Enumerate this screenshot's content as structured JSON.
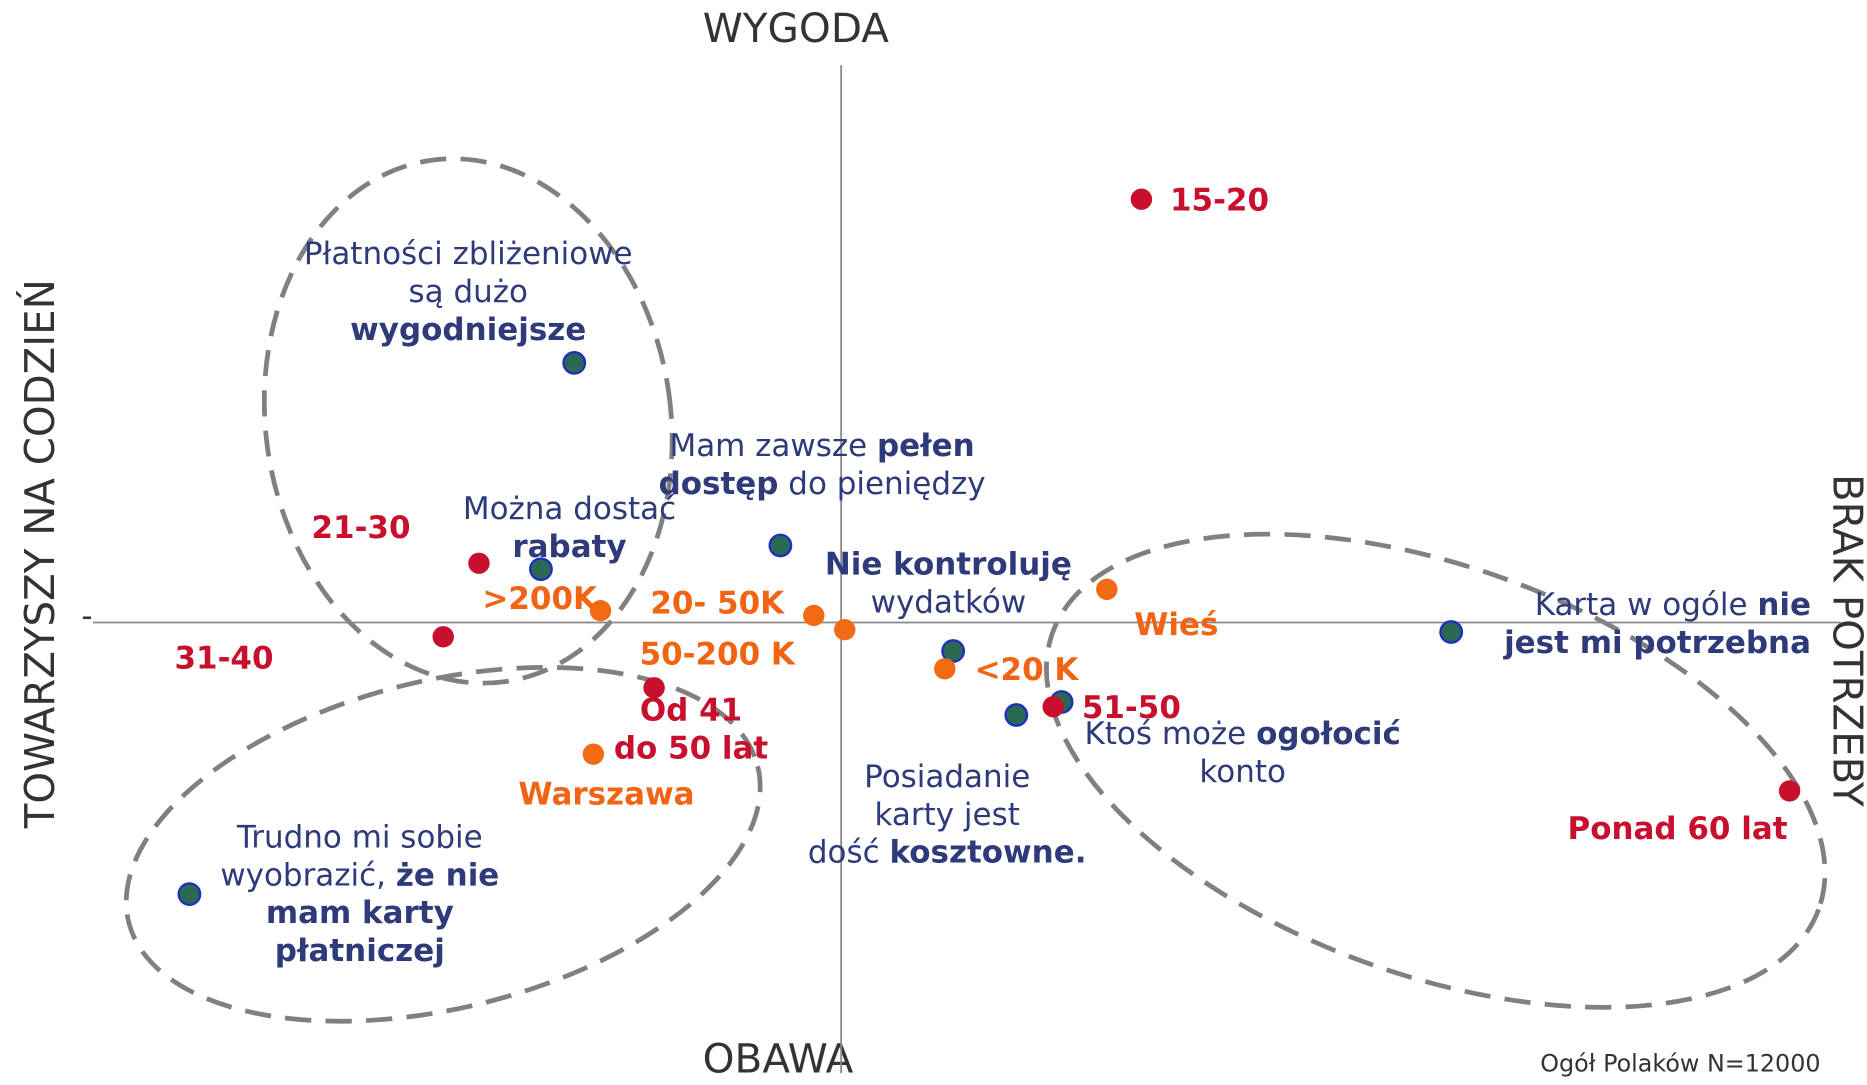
{
  "chart_data": {
    "type": "scatter",
    "x_axis_labels": [
      "TOWARZYSZY NA CODZIEŃ",
      "BRAK POTRZEBY"
    ],
    "y_axis_labels": [
      "WYGODA",
      "OBAWA"
    ],
    "y_tick_mark": "-",
    "note": "Ogół Polaków N=12000",
    "xlim": [
      -6.28,
      8.39
    ],
    "ylim": [
      -3.75,
      4.7
    ],
    "series": [
      {
        "color": "#2a6a52",
        "edge": "#1f2fbf",
        "text_color": "#2e3a7a",
        "bold": false,
        "x": [
          -2.24,
          -2.52,
          -0.51,
          0.94,
          1.85,
          1.47,
          5.12,
          -5.47
        ],
        "y": [
          2.19,
          0.45,
          0.65,
          -0.24,
          -0.67,
          -0.78,
          -0.08,
          -2.29
        ],
        "labels": [
          [
            [
              "Płatności zbliżeniowe"
            ],
            [
              "są dużo"
            ],
            [
              {
                "b": "wygodniejsze"
              }
            ]
          ],
          [
            [
              "Można dostać"
            ],
            [
              {
                "b": "rabaty"
              }
            ]
          ],
          [
            [
              "Mam zawsze ",
              {
                "b": "pełen"
              }
            ],
            [
              {
                "b": "dostęp"
              },
              " do pieniędzy"
            ]
          ],
          [
            [
              {
                "b": "Nie kontroluję"
              }
            ],
            [
              "wydatków"
            ]
          ],
          [
            [
              "Ktoś może ",
              {
                "b": "ogołocić"
              }
            ],
            [
              "konto"
            ]
          ],
          [
            [
              "Posiadanie"
            ],
            [
              "karty jest"
            ],
            [
              "dość ",
              {
                "b": "kosztowne."
              }
            ]
          ],
          [
            [
              "Karta w ogóle ",
              {
                "b": "nie"
              }
            ],
            [
              {
                "b": "jest mi potrzebna"
              }
            ]
          ],
          [
            [
              "Trudno mi sobie"
            ],
            [
              "wyobrazić, ",
              {
                "b": "że nie"
              }
            ],
            [
              {
                "b": "mam karty"
              }
            ],
            [
              {
                "b": "płatniczej"
              }
            ]
          ]
        ]
      },
      {
        "color": "#c8102e",
        "text_color": "#c8102e",
        "bold": true,
        "x": [
          2.52,
          -3.04,
          -3.34,
          -1.57,
          1.78,
          7.96
        ],
        "y": [
          3.57,
          0.5,
          -0.12,
          -0.55,
          -0.71,
          -1.42
        ],
        "labels": [
          [
            [
              "15-20"
            ]
          ],
          [
            [
              "21-30"
            ]
          ],
          [
            [
              "31-40"
            ]
          ],
          [
            [
              "Od 41"
            ],
            [
              "do 50 lat"
            ]
          ],
          [
            [
              "51-50"
            ]
          ],
          [
            [
              "Ponad 60 lat"
            ]
          ]
        ]
      },
      {
        "color": "#f26b14",
        "text_color": "#f06414",
        "bold": true,
        "x": [
          -2.02,
          -0.23,
          0.03,
          0.87,
          2.23,
          -2.08
        ],
        "y": [
          0.1,
          0.06,
          -0.06,
          -0.39,
          0.28,
          -1.11
        ],
        "labels": [
          [
            [
              ">200K"
            ]
          ],
          [
            [
              "20- 50K"
            ]
          ],
          [
            [
              "50-200 K"
            ]
          ],
          [
            [
              "<20 K"
            ]
          ],
          [
            [
              "Wieś"
            ]
          ],
          [
            [
              "Warszawa"
            ]
          ]
        ]
      }
    ]
  }
}
